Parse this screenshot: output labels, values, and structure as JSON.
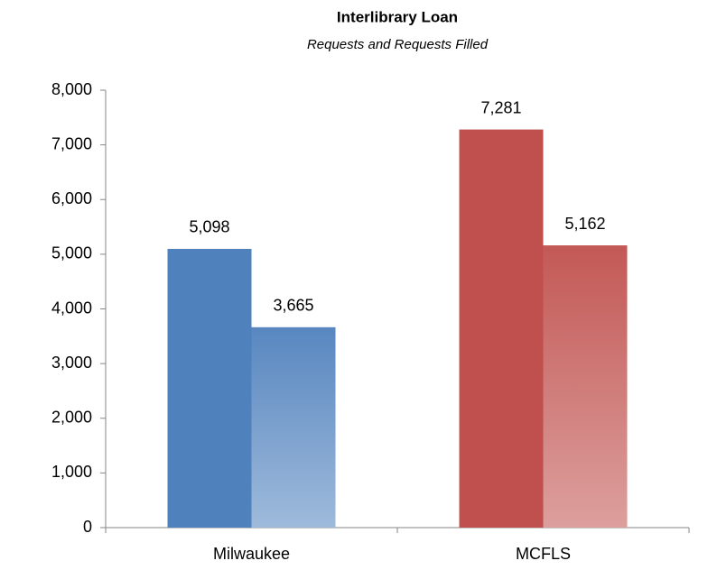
{
  "chart_data": {
    "type": "bar",
    "title": "Interlibrary Loan",
    "subtitle": "Requests and Requests Filled",
    "categories": [
      "Milwaukee",
      "MCFLS"
    ],
    "category_colors": [
      "#4f81bd",
      "#c0504d"
    ],
    "series": [
      {
        "style": "solid",
        "values": [
          5098,
          7281
        ],
        "value_labels": [
          "5,098",
          "7,281"
        ]
      },
      {
        "style": "gradient",
        "values": [
          3665,
          5162
        ],
        "value_labels": [
          "3,665",
          "5,162"
        ]
      }
    ],
    "ylim": [
      0,
      8000
    ],
    "yticks": [
      0,
      {
        "value": 1000,
        "label": "1,000"
      },
      {
        "value": 2000,
        "label": "2,000"
      },
      {
        "value": 3000,
        "label": "3,000"
      },
      {
        "value": 4000,
        "label": "4,000"
      },
      {
        "value": 5000,
        "label": "5,000"
      },
      {
        "value": 6000,
        "label": "6,000"
      },
      {
        "value": 7000,
        "label": "7,000"
      },
      {
        "value": 8000,
        "label": "8,000"
      }
    ],
    "grid": false
  }
}
